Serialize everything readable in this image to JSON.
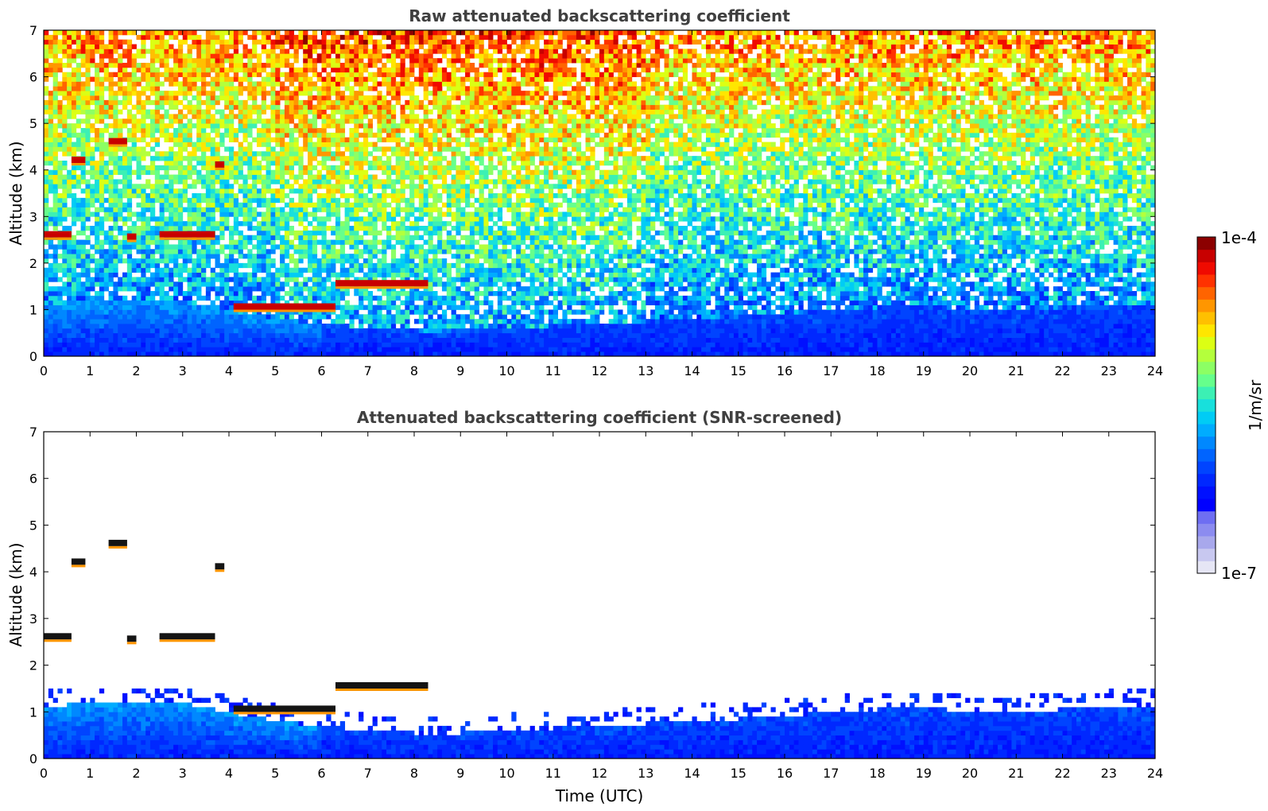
{
  "chart_data": [
    {
      "type": "heatmap",
      "title": "Raw attenuated backscattering coefficient",
      "xlabel": "",
      "ylabel": "Altitude (km)",
      "xlim": [
        0,
        24
      ],
      "ylim": [
        0,
        7
      ],
      "xticks": [
        "0",
        "1",
        "2",
        "3",
        "4",
        "5",
        "6",
        "7",
        "8",
        "9",
        "10",
        "11",
        "12",
        "13",
        "14",
        "15",
        "16",
        "17",
        "18",
        "19",
        "20",
        "21",
        "22",
        "23",
        "24"
      ],
      "yticks": [
        "0",
        "1",
        "2",
        "3",
        "4",
        "5",
        "6",
        "7"
      ],
      "grid": false,
      "colorscale": "jet-log",
      "features": [
        {
          "kind": "boundary-layer",
          "t_start": 0,
          "t_end": 24,
          "alt_top_km": [
            1.1,
            1.2,
            1.2,
            1.2,
            1.0,
            0.8,
            0.7,
            0.6,
            0.55,
            0.55,
            0.6,
            0.65,
            0.7,
            0.75,
            0.8,
            0.85,
            0.9,
            1.0,
            1.05,
            1.1,
            1.0,
            1.0,
            1.05,
            1.1,
            1.15
          ]
        },
        {
          "kind": "cloud",
          "t_start": 0.0,
          "t_end": 0.6,
          "alt_km": 2.6
        },
        {
          "kind": "cloud",
          "t_start": 1.4,
          "t_end": 1.8,
          "alt_km": 4.6
        },
        {
          "kind": "cloud",
          "t_start": 0.6,
          "t_end": 0.9,
          "alt_km": 4.2
        },
        {
          "kind": "cloud",
          "t_start": 1.8,
          "t_end": 2.0,
          "alt_km": 2.55
        },
        {
          "kind": "cloud",
          "t_start": 2.5,
          "t_end": 3.7,
          "alt_km": 2.6
        },
        {
          "kind": "cloud",
          "t_start": 3.7,
          "t_end": 3.9,
          "alt_km": 4.1
        },
        {
          "kind": "cloud",
          "t_start": 4.1,
          "t_end": 6.3,
          "alt_km": 1.05
        },
        {
          "kind": "cloud",
          "t_start": 6.3,
          "t_end": 8.3,
          "alt_km": 1.55
        }
      ]
    },
    {
      "type": "heatmap",
      "title": "Attenuated backscattering coefficient (SNR-screened)",
      "xlabel": "Time (UTC)",
      "ylabel": "Altitude (km)",
      "xlim": [
        0,
        24
      ],
      "ylim": [
        0,
        7
      ],
      "xticks": [
        "0",
        "1",
        "2",
        "3",
        "4",
        "5",
        "6",
        "7",
        "8",
        "9",
        "10",
        "11",
        "12",
        "13",
        "14",
        "15",
        "16",
        "17",
        "18",
        "19",
        "20",
        "21",
        "22",
        "23",
        "24"
      ],
      "yticks": [
        "0",
        "1",
        "2",
        "3",
        "4",
        "5",
        "6",
        "7"
      ],
      "grid": false,
      "colorscale": "jet-log",
      "screened": true
    }
  ],
  "colorbar": {
    "max_label": "1e-4",
    "min_label": "1e-7",
    "unit_label": "1/m/sr",
    "colors": [
      "#e6e6f5",
      "#c8c8f0",
      "#a8a8ec",
      "#8c8cf0",
      "#6e6ef2",
      "#0000ff",
      "#0010ff",
      "#0028ff",
      "#0044ff",
      "#0064ff",
      "#0088ff",
      "#00acff",
      "#00ccf5",
      "#18e0dc",
      "#3cf0b4",
      "#66ff8c",
      "#8cff64",
      "#b4ff3c",
      "#dcff14",
      "#ffe600",
      "#ffc000",
      "#ff9600",
      "#ff6400",
      "#ff3200",
      "#f00a00",
      "#c80000",
      "#8c0000"
    ]
  }
}
